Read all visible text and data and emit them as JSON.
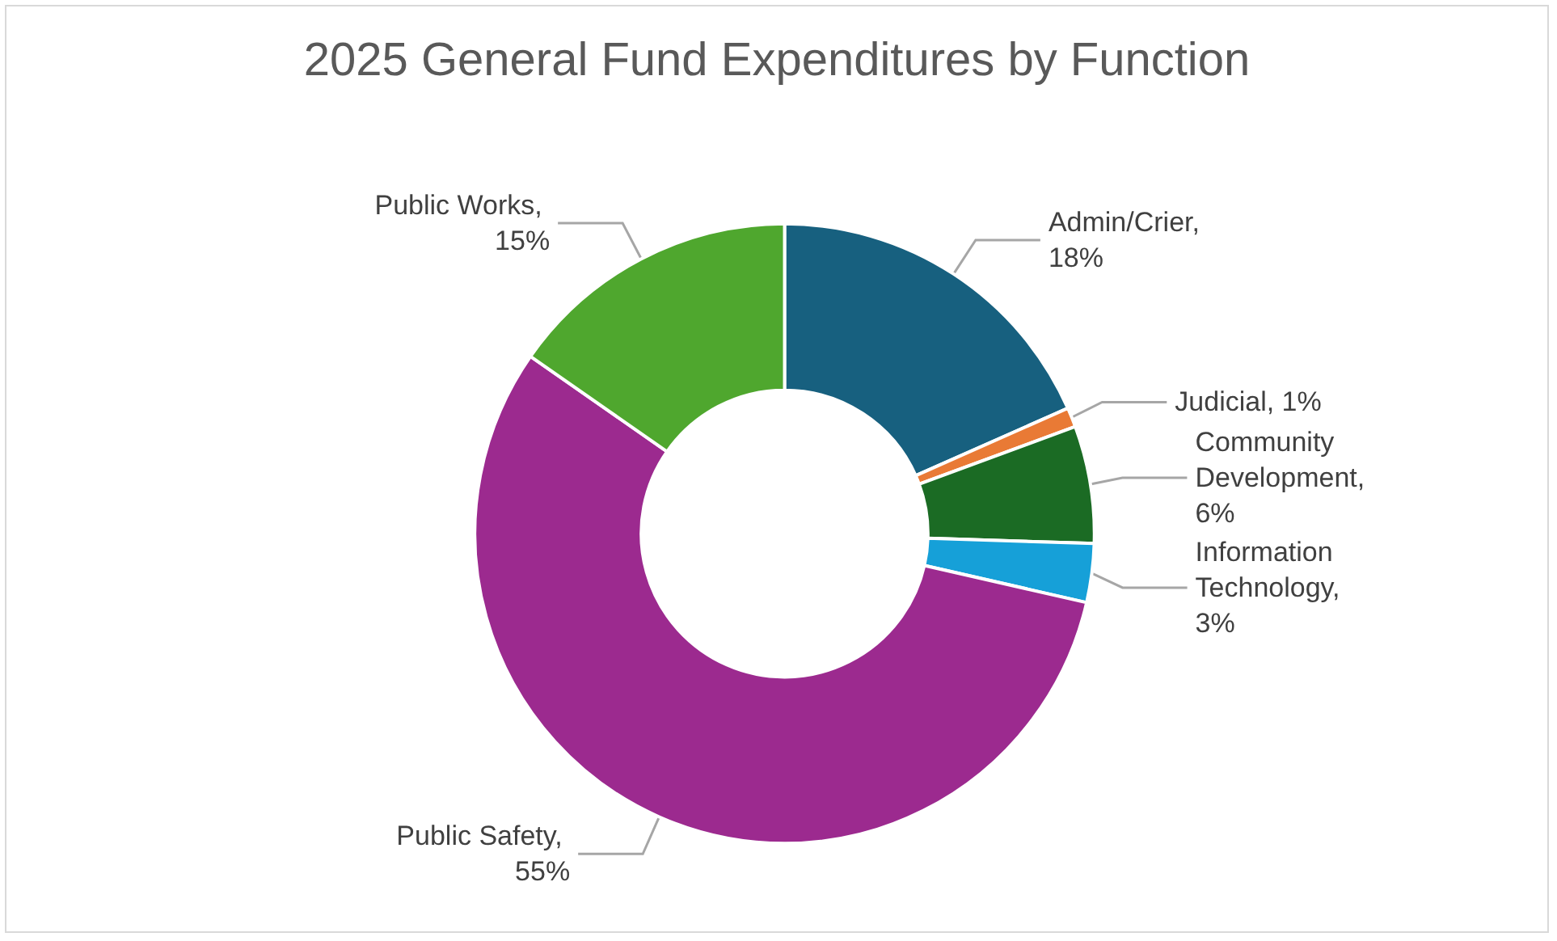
{
  "chart_data": {
    "type": "donut",
    "title": "2025 General Fund Expenditures by Function",
    "categories": [
      "Admin/Crier",
      "Judicial",
      "Community Development",
      "Information Technology",
      "Public Safety",
      "Public Works"
    ],
    "values": [
      18,
      1,
      6,
      3,
      55,
      15
    ],
    "value_labels": [
      ", 18%",
      ", 1%",
      ", 6%",
      ", 3%",
      ", 55%",
      ", 15%"
    ],
    "colors": [
      "#17607f",
      "#e97a35",
      "#1b6b24",
      "#16a0d8",
      "#9c2a8f",
      "#4fa72e"
    ],
    "legend": false
  }
}
